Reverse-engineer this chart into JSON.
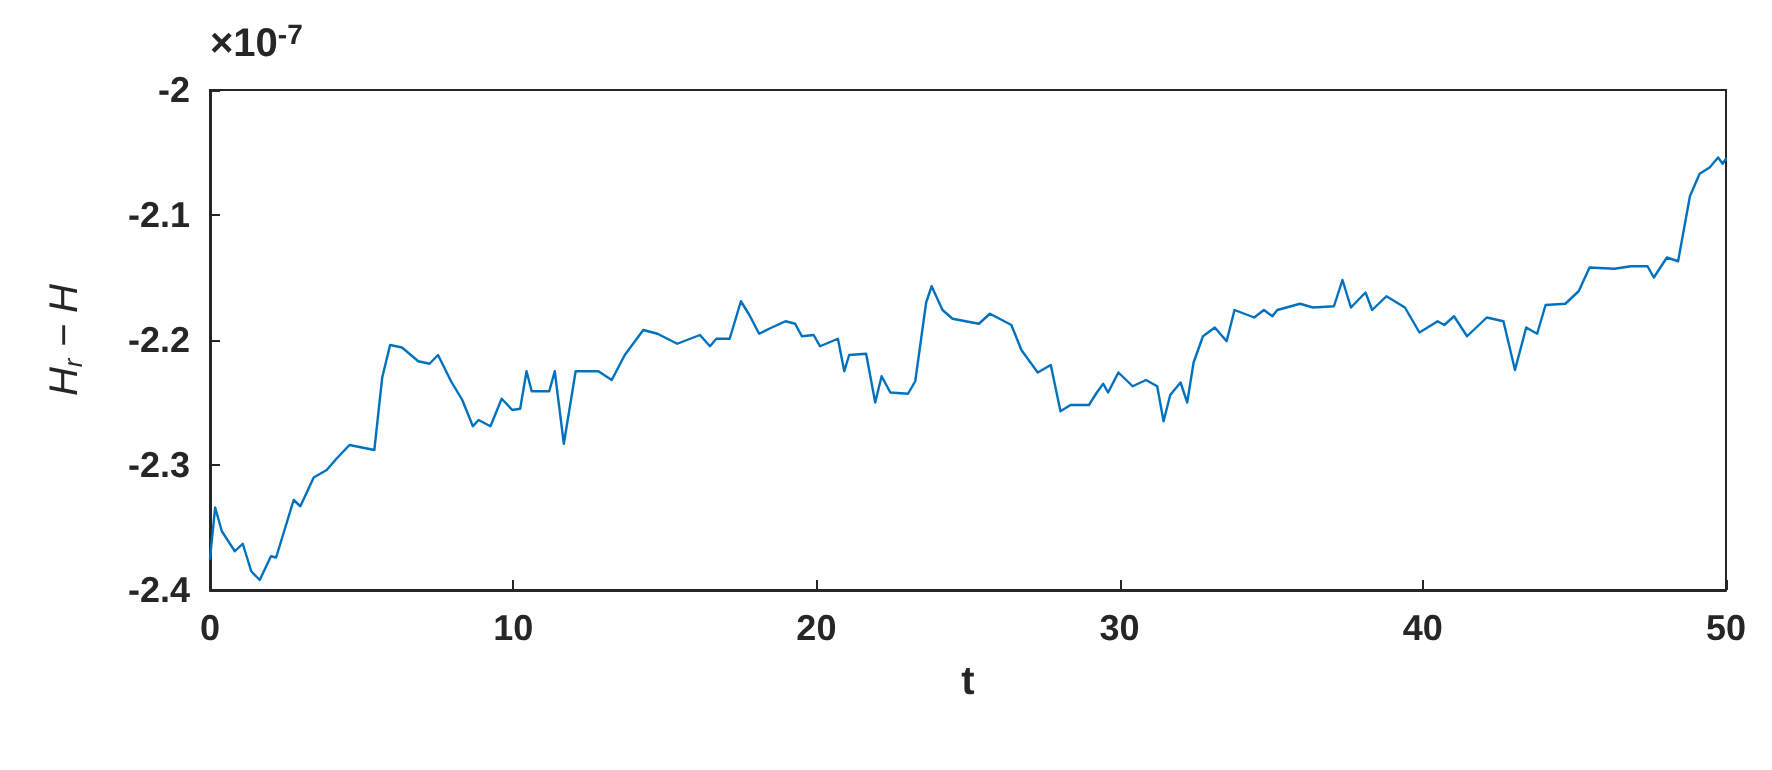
{
  "chart_data": {
    "type": "line",
    "xlabel": "t",
    "ylabel": "H$_{r}$ − H",
    "annotations": [
      "×10$^{-7}$"
    ],
    "xlim": [
      0,
      50
    ],
    "xticks": [
      0,
      10,
      20,
      30,
      40,
      50
    ],
    "ylim": [
      -2.4,
      -2
    ],
    "yticks": [
      -2.4,
      -2.3,
      -2.2,
      -2.1,
      -2
    ],
    "grid": false,
    "marker": "none",
    "line_style": "solid",
    "series": [
      {
        "color": "#0072bd",
        "x": [
          0,
          0.17,
          0.39,
          0.82,
          1.08,
          1.36,
          1.64,
          2.01,
          2.18,
          2.76,
          2.98,
          3.42,
          3.85,
          4.17,
          4.6,
          5.42,
          5.68,
          5.94,
          6.33,
          6.87,
          7.24,
          7.52,
          7.95,
          8.32,
          8.67,
          8.86,
          9.25,
          9.62,
          9.97,
          10.23,
          10.44,
          10.61,
          11.19,
          11.37,
          11.67,
          12.06,
          12.81,
          13.25,
          13.68,
          14.29,
          14.76,
          15.41,
          16.16,
          16.49,
          16.7,
          17.14,
          17.51,
          17.79,
          18.11,
          18.44,
          18.98,
          19.3,
          19.52,
          19.91,
          20.12,
          20.71,
          20.92,
          21.08,
          21.64,
          21.94,
          22.15,
          22.44,
          23.02,
          23.26,
          23.62,
          23.8,
          24.16,
          24.49,
          24.92,
          25.36,
          25.72,
          25.96,
          26.43,
          26.76,
          27.3,
          27.73,
          28.05,
          28.38,
          28.99,
          29.25,
          29.46,
          29.62,
          29.96,
          30.43,
          30.87,
          31.24,
          31.45,
          31.67,
          32.01,
          32.23,
          32.44,
          32.75,
          33.14,
          33.53,
          33.79,
          34.44,
          34.76,
          35.04,
          35.2,
          35.95,
          36.38,
          37.07,
          37.35,
          37.63,
          38.11,
          38.33,
          38.8,
          39.41,
          39.89,
          40.49,
          40.71,
          41.03,
          41.46,
          42.11,
          42.66,
          43.04,
          43.41,
          43.77,
          44.05,
          44.7,
          45.14,
          45.5,
          46.32,
          46.86,
          47.41,
          47.62,
          48.05,
          48.42,
          48.81,
          49.13,
          49.46,
          49.74,
          49.89,
          50
        ],
        "values": [
          -2.375,
          -2.334,
          -2.353,
          -2.369,
          -2.363,
          -2.385,
          -2.392,
          -2.373,
          -2.374,
          -2.328,
          -2.333,
          -2.31,
          -2.304,
          -2.295,
          -2.284,
          -2.288,
          -2.23,
          -2.204,
          -2.206,
          -2.217,
          -2.219,
          -2.212,
          -2.233,
          -2.248,
          -2.269,
          -2.264,
          -2.269,
          -2.247,
          -2.256,
          -2.255,
          -2.225,
          -2.241,
          -2.241,
          -2.225,
          -2.283,
          -2.225,
          -2.225,
          -2.232,
          -2.212,
          -2.192,
          -2.195,
          -2.203,
          -2.196,
          -2.205,
          -2.199,
          -2.199,
          -2.169,
          -2.18,
          -2.195,
          -2.191,
          -2.185,
          -2.187,
          -2.197,
          -2.196,
          -2.205,
          -2.199,
          -2.225,
          -2.212,
          -2.211,
          -2.25,
          -2.229,
          -2.242,
          -2.243,
          -2.233,
          -2.17,
          -2.157,
          -2.176,
          -2.183,
          -2.185,
          -2.187,
          -2.179,
          -2.182,
          -2.188,
          -2.208,
          -2.226,
          -2.22,
          -2.257,
          -2.252,
          -2.252,
          -2.242,
          -2.235,
          -2.242,
          -2.226,
          -2.237,
          -2.232,
          -2.237,
          -2.265,
          -2.244,
          -2.234,
          -2.25,
          -2.218,
          -2.197,
          -2.19,
          -2.201,
          -2.176,
          -2.182,
          -2.176,
          -2.181,
          -2.176,
          -2.171,
          -2.174,
          -2.173,
          -2.152,
          -2.174,
          -2.162,
          -2.176,
          -2.165,
          -2.174,
          -2.194,
          -2.185,
          -2.188,
          -2.181,
          -2.197,
          -2.182,
          -2.185,
          -2.224,
          -2.19,
          -2.195,
          -2.172,
          -2.171,
          -2.161,
          -2.142,
          -2.143,
          -2.141,
          -2.141,
          -2.15,
          -2.134,
          -2.137,
          -2.085,
          -2.067,
          -2.062,
          -2.054,
          -2.059,
          -2.055
        ]
      }
    ]
  }
}
